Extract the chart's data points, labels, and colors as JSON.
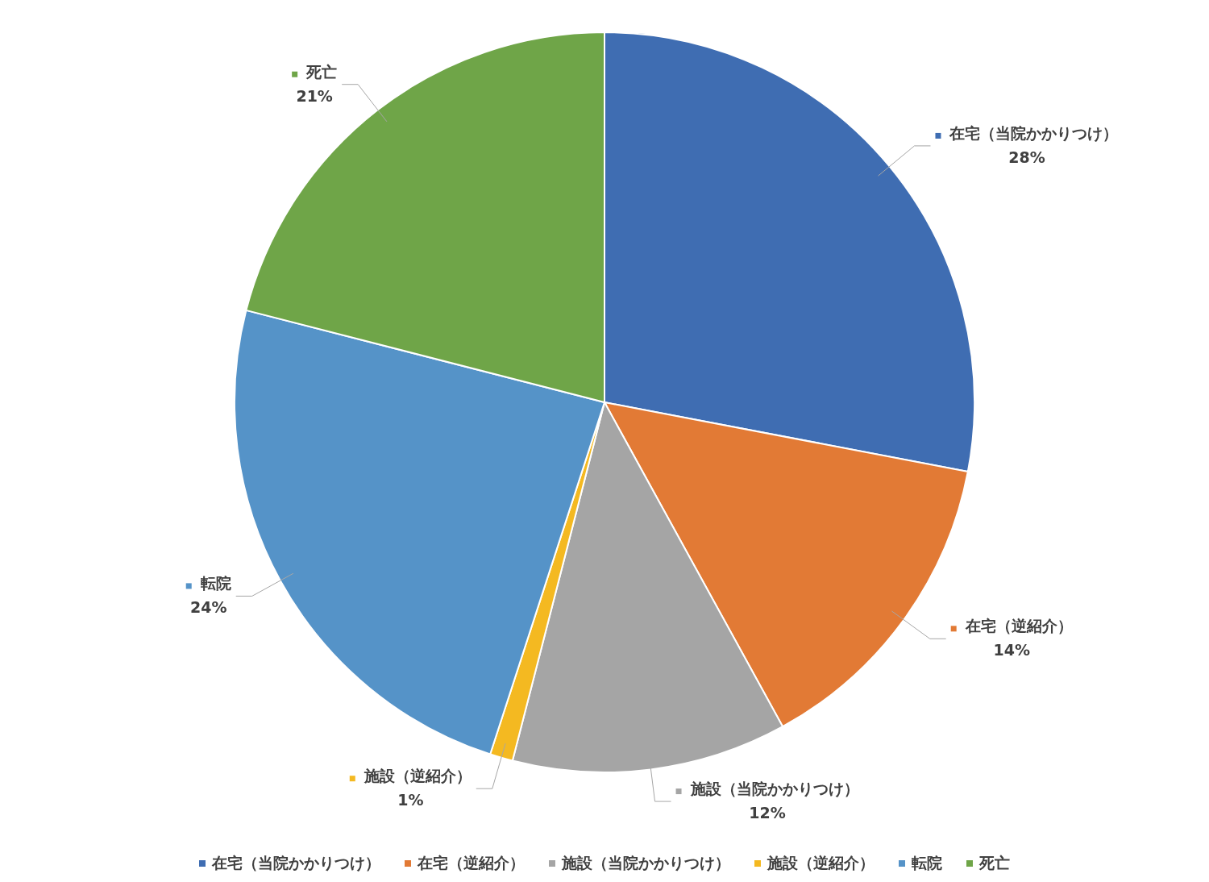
{
  "chart_data": {
    "type": "pie",
    "categories": [
      "在宅（当院かかりつけ）",
      "在宅（逆紹介）",
      "施設（当院かかりつけ）",
      "施設（逆紹介）",
      "転院",
      "死亡"
    ],
    "values": [
      28,
      14,
      12,
      1,
      24,
      21
    ],
    "colors": [
      "#3f6db2",
      "#e27a35",
      "#a5a5a5",
      "#f4b921",
      "#5593c8",
      "#6fa548"
    ],
    "value_labels": [
      "28%",
      "14%",
      "12%",
      "1%",
      "24%",
      "21%"
    ],
    "legend": "bottom"
  }
}
